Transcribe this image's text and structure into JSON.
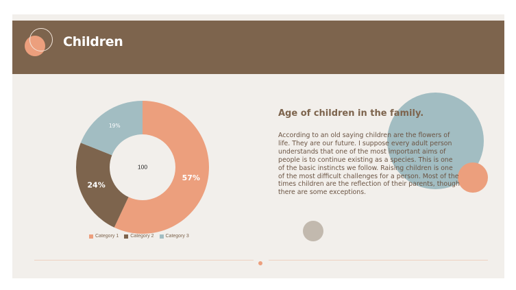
{
  "slide": {
    "title": "Children",
    "heading": "Age of children in the family.",
    "body": "According to an old saying children are the flowers of life. They are our future. I suppose every adult person understands that one of the most important aims of people is to continue existing as a species. This is one of the basic instincts we follow. Raising children is one of the most difficult challenges for a person. Most of the times children are the reflection of their parents, though there are some exceptions."
  },
  "chart_data": {
    "type": "pie",
    "subtype": "donut",
    "center_label": "100",
    "categories": [
      "Category 1",
      "Category 2",
      "Category 3"
    ],
    "values": [
      57,
      24,
      19
    ],
    "labels": [
      "57%",
      "24%",
      "19%"
    ],
    "colors": [
      "#ec9f7d",
      "#7d644d",
      "#a2bdc2"
    ],
    "legend": "bottom"
  },
  "colors": {
    "header": "#7d644d",
    "accent_orange": "#ec9f7d",
    "accent_blue": "#a2bdc2",
    "background": "#f2efeb"
  }
}
